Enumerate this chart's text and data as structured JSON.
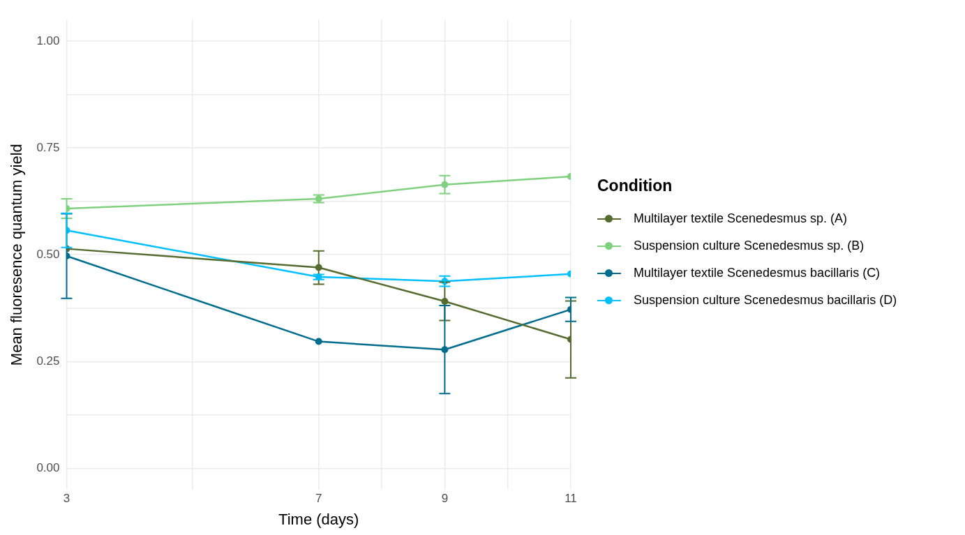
{
  "chart_data": {
    "type": "line",
    "xlabel": "Time (days)",
    "ylabel": "Mean fluoresence quantum yield",
    "legend_title": "Condition",
    "legend": "right",
    "grid": true,
    "marker": "circle",
    "x": [
      3,
      7,
      9,
      11
    ],
    "xlim": [
      3,
      11
    ],
    "xticks": [
      3,
      {
        "value": 5,
        "label": null
      },
      7,
      {
        "value": 8,
        "label": null
      },
      9,
      {
        "value": 10,
        "label": null
      },
      11
    ],
    "ylim": [
      -0.05,
      1.05
    ],
    "yticks": [
      {
        "value": 0,
        "label": "0.00"
      },
      {
        "value": 0.125,
        "label": null
      },
      {
        "value": 0.25,
        "label": "0.25"
      },
      {
        "value": 0.375,
        "label": null
      },
      {
        "value": 0.5,
        "label": "0.50"
      },
      {
        "value": 0.625,
        "label": null
      },
      {
        "value": 0.75,
        "label": "0.75"
      },
      {
        "value": 0.875,
        "label": null
      },
      {
        "value": 1,
        "label": "1.00"
      }
    ],
    "series": [
      {
        "name": "Multilayer textile Scenedesmus sp. (A)",
        "color": "#556b2f",
        "values": [
          0.514,
          0.47,
          0.391,
          0.302
        ],
        "errors": [
          null,
          0.039,
          0.045,
          0.09
        ]
      },
      {
        "name": "Suspension culture Scenedesmus sp. (B)",
        "color": "#7fd07f",
        "values": [
          0.608,
          0.631,
          0.664,
          0.683
        ],
        "errors": [
          0.023,
          0.009,
          0.021,
          null
        ]
      },
      {
        "name": "Multilayer textile Scenedesmus bacillaris (C)",
        "color": "#006c8e",
        "values": [
          0.497,
          0.297,
          0.278,
          0.372
        ],
        "errors": [
          0.099,
          null,
          0.103,
          0.028
        ]
      },
      {
        "name": "Suspension culture Scenedesmus bacillaris (D)",
        "color": "#00bfff",
        "values": [
          0.557,
          0.448,
          0.438,
          0.455
        ],
        "errors": [
          0.04,
          0.006,
          0.012,
          null
        ]
      }
    ]
  }
}
